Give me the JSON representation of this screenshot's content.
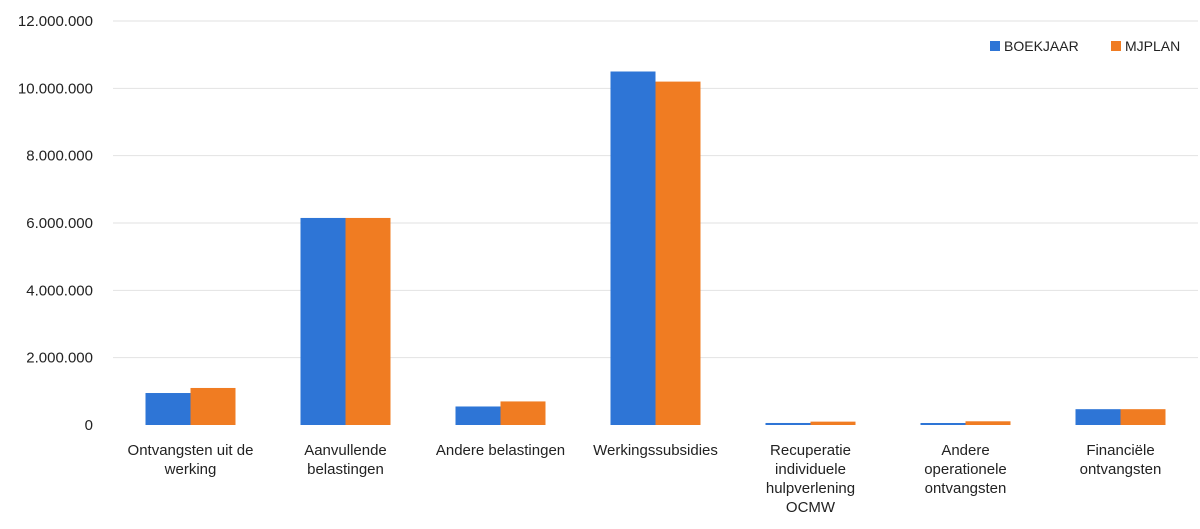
{
  "chart_data": {
    "type": "bar",
    "categories": [
      [
        "Ontvangsten uit de",
        "werking"
      ],
      [
        "Aanvullende",
        "belastingen"
      ],
      [
        "Andere belastingen"
      ],
      [
        "Werkingssubsidies"
      ],
      [
        "Recuperatie",
        "individuele",
        "hulpverlening",
        "OCMW"
      ],
      [
        "Andere",
        "operationele",
        "ontvangsten"
      ],
      [
        "Financiële",
        "ontvangsten"
      ]
    ],
    "series": [
      {
        "name": "BOEKJAAR",
        "color": "#2e75d6",
        "values": [
          950000,
          6150000,
          550000,
          10500000,
          60000,
          30000,
          470000
        ]
      },
      {
        "name": "MJPLAN",
        "color": "#f07c22",
        "values": [
          1100000,
          6150000,
          700000,
          10200000,
          100000,
          110000,
          470000
        ]
      }
    ],
    "ylim": [
      0,
      12000000
    ],
    "yticks": [
      "0",
      "2.000.000",
      "4.000.000",
      "6.000.000",
      "8.000.000",
      "10.000.000",
      "12.000.000"
    ],
    "ytick_values": [
      0,
      2000000,
      4000000,
      6000000,
      8000000,
      10000000,
      12000000
    ],
    "grid": true,
    "legend_position": "top-right",
    "title": "",
    "xlabel": "",
    "ylabel": ""
  }
}
